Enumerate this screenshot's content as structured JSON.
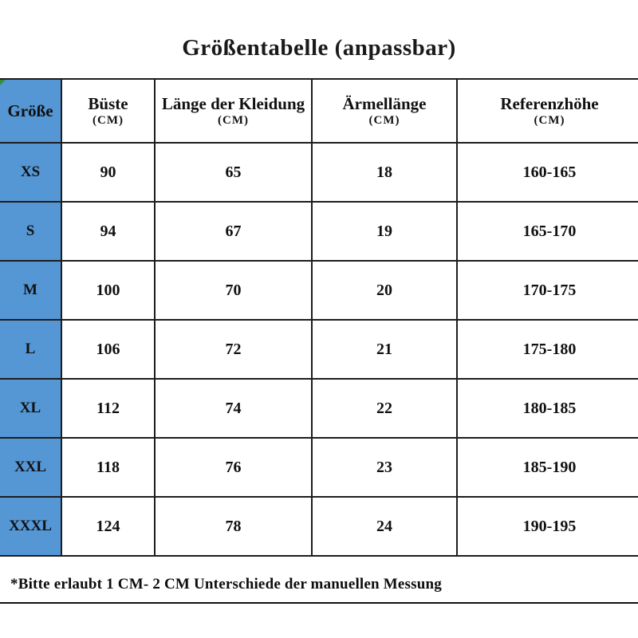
{
  "page": {
    "title": "Größentabelle (anpassbar)",
    "footnote": "*Bitte erlaubt 1 CM- 2 CM Unterschiede der manuellen Messung"
  },
  "colors": {
    "size_column_blue": "#5596d4",
    "border_black": "#1d1d1d",
    "corner_marker_green": "#2f9140",
    "background": "#ffffff"
  },
  "table": {
    "columns": [
      {
        "label": "Größe",
        "unit": ""
      },
      {
        "label": "Büste",
        "unit": "(CM)"
      },
      {
        "label": "Länge der Kleidung",
        "unit": "(CM)"
      },
      {
        "label": "Ärmellänge",
        "unit": "(CM)"
      },
      {
        "label": "Referenzhöhe",
        "unit": "(CM)"
      }
    ],
    "rows": [
      {
        "size": "XS",
        "bust": "90",
        "length": "65",
        "sleeve": "18",
        "height": "160-165"
      },
      {
        "size": "S",
        "bust": "94",
        "length": "67",
        "sleeve": "19",
        "height": "165-170"
      },
      {
        "size": "M",
        "bust": "100",
        "length": "70",
        "sleeve": "20",
        "height": "170-175"
      },
      {
        "size": "L",
        "bust": "106",
        "length": "72",
        "sleeve": "21",
        "height": "175-180"
      },
      {
        "size": "XL",
        "bust": "112",
        "length": "74",
        "sleeve": "22",
        "height": "180-185"
      },
      {
        "size": "XXL",
        "bust": "118",
        "length": "76",
        "sleeve": "23",
        "height": "185-190"
      },
      {
        "size": "XXXL",
        "bust": "124",
        "length": "78",
        "sleeve": "24",
        "height": "190-195"
      }
    ]
  }
}
